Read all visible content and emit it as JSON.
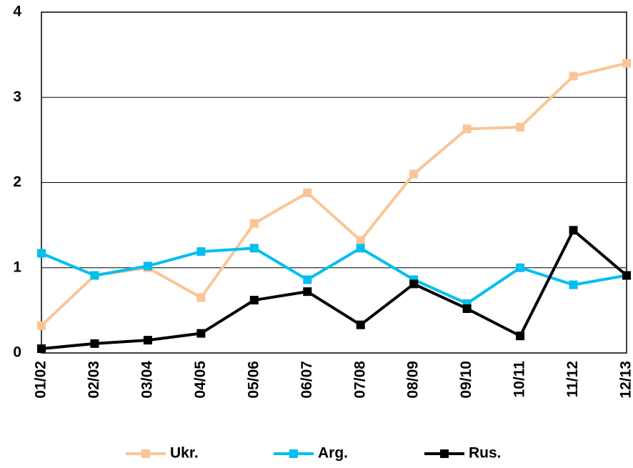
{
  "chart_data": {
    "type": "line",
    "categories": [
      "01/02",
      "02/03",
      "03/04",
      "04/05",
      "05/06",
      "06/07",
      "07/08",
      "08/09",
      "09/10",
      "10/11",
      "11/12",
      "12/13"
    ],
    "series": [
      {
        "name": "Ukr.",
        "color": "#fac596",
        "values": [
          0.32,
          0.91,
          1.0,
          0.65,
          1.52,
          1.88,
          1.32,
          2.1,
          2.63,
          2.65,
          3.25,
          3.4
        ]
      },
      {
        "name": "Arg.",
        "color": "#00bff0",
        "values": [
          1.17,
          0.91,
          1.02,
          1.19,
          1.23,
          0.86,
          1.23,
          0.86,
          0.58,
          1.0,
          0.8,
          0.91
        ]
      },
      {
        "name": "Rus.",
        "color": "#000000",
        "values": [
          0.05,
          0.11,
          0.15,
          0.23,
          0.62,
          0.72,
          0.33,
          0.81,
          0.52,
          0.2,
          1.44,
          0.91
        ]
      }
    ],
    "ylim": [
      0,
      4
    ],
    "yticks": [
      0,
      1,
      2,
      3,
      4
    ],
    "grid": true,
    "legend": "bottom"
  }
}
